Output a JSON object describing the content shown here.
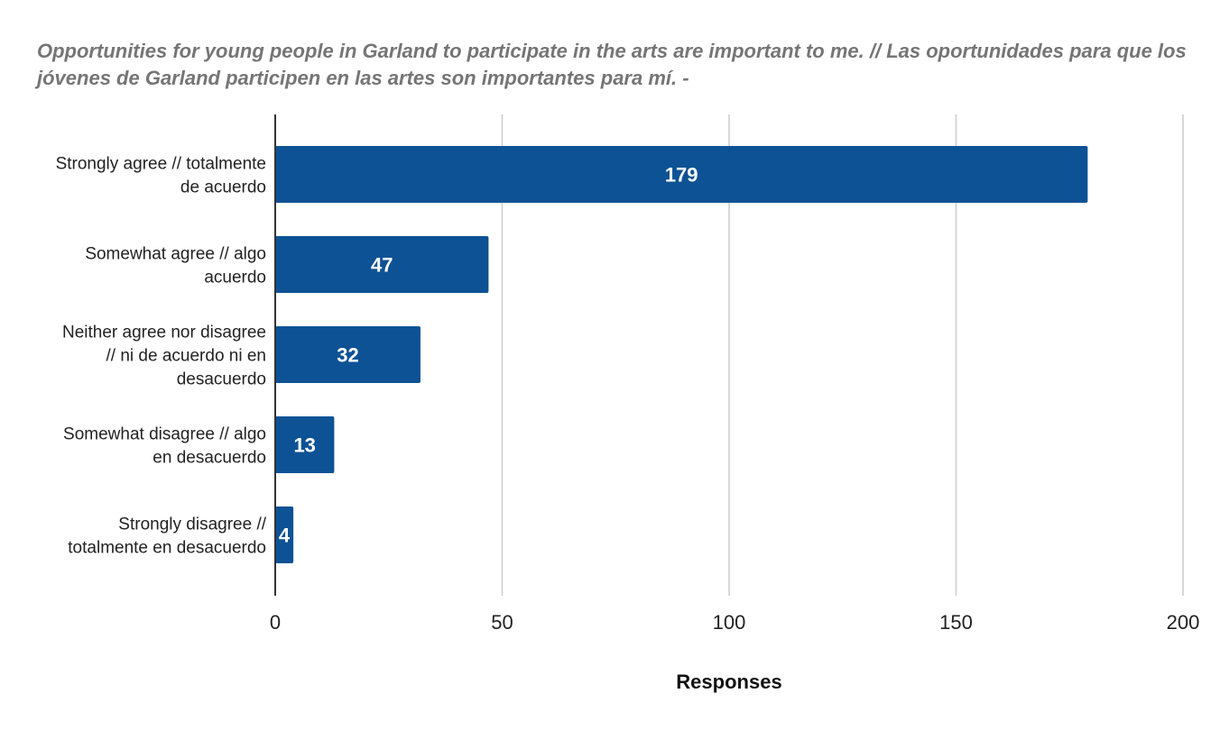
{
  "chart_data": {
    "type": "bar",
    "orientation": "horizontal",
    "title": "Opportunities for young people in Garland to participate in the arts are important to me. // Las oportunidades para que los jóvenes de Garland participen en las artes son importantes para mí. -",
    "categories": [
      "Strongly agree // totalmente de acuerdo",
      "Somewhat agree // algo acuerdo",
      "Neither agree nor disagree // ni de acuerdo ni en desacuerdo",
      "Somewhat disagree // algo en desacuerdo",
      "Strongly disagree // totalmente en desacuerdo"
    ],
    "category_lines": [
      [
        "Strongly agree // totalmente",
        "de acuerdo"
      ],
      [
        "Somewhat agree // algo",
        "acuerdo"
      ],
      [
        "Neither agree nor disagree",
        "// ni de acuerdo ni en",
        "desacuerdo"
      ],
      [
        "Somewhat disagree // algo",
        "en desacuerdo"
      ],
      [
        "Strongly disagree //",
        "totalmente en desacuerdo"
      ]
    ],
    "values": [
      179,
      47,
      32,
      13,
      4
    ],
    "data_labels": [
      "179",
      "47",
      "32",
      "13",
      "4"
    ],
    "xlabel": "Responses",
    "ylabel": "",
    "xlim": [
      0,
      200
    ],
    "xticks": [
      0,
      50,
      100,
      150,
      200
    ],
    "xtick_labels": [
      "0",
      "50",
      "100",
      "150",
      "200"
    ],
    "grid": true,
    "legend": "none",
    "bar_color": "#0d5294",
    "gridline_color": "#cccccc",
    "axis_color": "#333333"
  }
}
